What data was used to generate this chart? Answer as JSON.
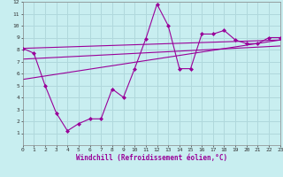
{
  "xlabel": "Windchill (Refroidissement éolien,°C)",
  "bg_color": "#c8eef0",
  "grid_color": "#b0d8dc",
  "line_color": "#990099",
  "xmin": 0,
  "xmax": 23,
  "ymin": 0,
  "ymax": 12,
  "xticks": [
    0,
    1,
    2,
    3,
    4,
    5,
    6,
    7,
    8,
    9,
    10,
    11,
    12,
    13,
    14,
    15,
    16,
    17,
    18,
    19,
    20,
    21,
    22,
    23
  ],
  "yticks": [
    1,
    2,
    3,
    4,
    5,
    6,
    7,
    8,
    9,
    10,
    11,
    12
  ],
  "data_x": [
    0,
    1,
    2,
    3,
    4,
    5,
    6,
    7,
    8,
    9,
    10,
    11,
    12,
    13,
    14,
    15,
    16,
    17,
    18,
    19,
    20,
    21,
    22,
    23
  ],
  "data_y": [
    8.1,
    7.7,
    5.0,
    2.7,
    1.2,
    1.8,
    2.2,
    2.2,
    4.7,
    4.0,
    6.4,
    8.9,
    11.8,
    10.0,
    6.4,
    6.4,
    9.3,
    9.3,
    9.6,
    8.8,
    8.5,
    8.5,
    9.0,
    9.0
  ],
  "trend1_x": [
    0,
    23
  ],
  "trend1_y": [
    8.1,
    8.8
  ],
  "trend2_x": [
    0,
    23
  ],
  "trend2_y": [
    7.2,
    8.3
  ],
  "trend3_x": [
    0,
    23
  ],
  "trend3_y": [
    5.5,
    8.8
  ]
}
